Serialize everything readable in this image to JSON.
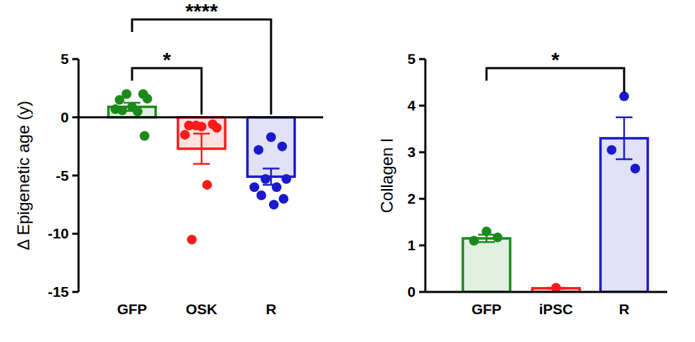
{
  "chart_data": [
    {
      "type": "bar",
      "y_label": "Δ Epigenetic age (y)",
      "categories": [
        "GFP",
        "OSK",
        "R"
      ],
      "values": [
        0.9,
        -2.7,
        -5.1
      ],
      "errors": [
        0.35,
        1.3,
        0.7
      ],
      "points": [
        [
          0.9,
          1.5,
          2.0,
          2.0,
          1.6,
          0.7,
          0.5,
          0.6,
          -1.6
        ],
        [
          -0.8,
          -0.7,
          -0.6,
          -0.7,
          -0.9,
          -1.5,
          -5.8,
          -10.5
        ],
        [
          -1.7,
          -2.8,
          -2.5,
          -5.3,
          -5.3,
          -6.0,
          -6.0,
          -6.7,
          -7.0,
          -7.5
        ]
      ],
      "colors": [
        "#1a8a1a",
        "#ff1a1a",
        "#1a1acc"
      ],
      "ylim": [
        -15,
        5
      ],
      "yticks": [
        -15,
        -10,
        -5,
        0,
        5
      ],
      "annotations": [
        {
          "from": "GFP",
          "to": "OSK",
          "label": "*"
        },
        {
          "from": "GFP",
          "to": "R",
          "label": "****"
        }
      ]
    },
    {
      "type": "bar",
      "y_label": "Collagen I",
      "categories": [
        "GFP",
        "iPSC",
        "R"
      ],
      "values": [
        1.15,
        0.08,
        3.3
      ],
      "errors": [
        0.08,
        0.01,
        0.45
      ],
      "points": [
        [
          1.3,
          1.1,
          1.17
        ],
        [
          0.09
        ],
        [
          4.2,
          3.05,
          2.65
        ]
      ],
      "colors": [
        "#1a8a1a",
        "#ff1a1a",
        "#1a1acc"
      ],
      "ylim": [
        0,
        5
      ],
      "yticks": [
        0,
        1,
        2,
        3,
        4,
        5
      ],
      "annotations": [
        {
          "from": "GFP",
          "to": "R",
          "label": "*"
        }
      ]
    }
  ]
}
